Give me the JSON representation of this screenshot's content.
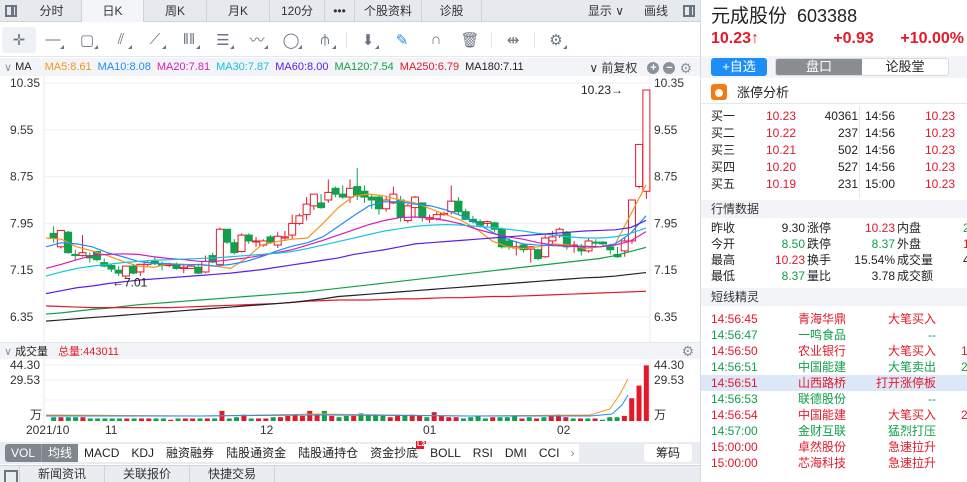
{
  "tabbar": {
    "tabs": [
      {
        "label": "分时",
        "active": false,
        "w": 60
      },
      {
        "label": "日K",
        "active": true,
        "w": 62
      },
      {
        "label": "周K",
        "active": false,
        "w": 63
      },
      {
        "label": "月K",
        "active": false,
        "w": 63
      },
      {
        "label": "120分",
        "active": false,
        "w": 55
      },
      {
        "label": "•••",
        "active": false,
        "w": 30
      },
      {
        "label": "个股资料",
        "active": false,
        "w": 67
      },
      {
        "label": "诊股",
        "active": false,
        "w": 60
      }
    ],
    "display_label": "显示 ∨",
    "draw_label": "画线"
  },
  "toolbar": {
    "tools": [
      {
        "name": "crosshair-icon",
        "glyph": "✛"
      },
      {
        "name": "line-tool-icon",
        "glyph": "—"
      },
      {
        "name": "rect-tool-icon",
        "glyph": "▢"
      },
      {
        "name": "fan-tool-icon",
        "glyph": "⫽"
      },
      {
        "name": "segment-tool-icon",
        "glyph": "⟋"
      },
      {
        "name": "cycle-lines-icon",
        "glyph": "‖‖"
      },
      {
        "name": "text-tool-icon",
        "glyph": "☰"
      },
      {
        "name": "wave-tool-icon",
        "glyph": "〰"
      },
      {
        "name": "ellipse-tool-icon",
        "glyph": "◯"
      },
      {
        "name": "fork-tool-icon",
        "glyph": "⫛"
      },
      {
        "name": "arrow-down-icon",
        "glyph": "⬇"
      },
      {
        "name": "eraser-icon",
        "glyph": "✎"
      },
      {
        "name": "magnet-icon",
        "glyph": "∩"
      },
      {
        "name": "trash-icon",
        "glyph": "🗑"
      },
      {
        "name": "split-icon",
        "glyph": "⇹"
      },
      {
        "name": "settings-icon",
        "glyph": "⚙"
      }
    ]
  },
  "ma_legend": {
    "label": "MA",
    "items": [
      {
        "text": "MA5:8.61",
        "color": "#f7931e"
      },
      {
        "text": "MA10:8.08",
        "color": "#1e8ef7"
      },
      {
        "text": "MA20:7.81",
        "color": "#d81bb6"
      },
      {
        "text": "MA30:7.87",
        "color": "#14c4e0"
      },
      {
        "text": "MA60:8.00",
        "color": "#5a20e6"
      },
      {
        "text": "MA120:7.54",
        "color": "#12a04a"
      },
      {
        "text": "MA250:6.79",
        "color": "#e3192a"
      },
      {
        "text": "MA180:7.11",
        "color": "#222222"
      }
    ],
    "adjust_label": "∨ 前复权"
  },
  "chart_data": {
    "type": "candlestick",
    "title": "元成股份 603388 日K",
    "y_ticks": [
      "10.35",
      "9.55",
      "8.75",
      "7.95",
      "7.15",
      "6.35"
    ],
    "y_range": [
      6.35,
      10.35
    ],
    "x_labels": [
      "2021/10",
      "11",
      "12",
      "01",
      "02"
    ],
    "annotations": {
      "high": "10.23→",
      "low": "←7.01"
    },
    "volume": {
      "label": "成交量",
      "total": "总量:443011",
      "y_ticks": [
        "44.30",
        "29.53",
        "万"
      ],
      "last_bars": [
        20.5,
        27.8,
        44.3
      ]
    }
  },
  "indicators": {
    "items": [
      "VOL",
      "均线",
      "MACD",
      "KDJ",
      "融资融券",
      "陆股通资金",
      "陆股通持仓",
      "资金抄底",
      "BOLL",
      "RSI",
      "DMI",
      "CCI"
    ],
    "l2_badge": "L2",
    "more": "›",
    "chips": "筹码"
  },
  "bottom_tabs": [
    "新闻资讯",
    "关联报价",
    "快捷交易"
  ],
  "stock": {
    "name": "元成股份",
    "code": "603388",
    "price": "10.23↑",
    "change": "+0.93",
    "change_pct": "+10.00%",
    "add_watch": "+自选",
    "seg_on": "盘口",
    "seg_off": "论股堂",
    "limit_analysis": "涨停分析"
  },
  "orderbook": [
    {
      "label": "买一",
      "price": "10.23",
      "vol": "40361",
      "time": "14:56",
      "tprice": "10.23"
    },
    {
      "label": "买二",
      "price": "10.22",
      "vol": "237",
      "time": "14:56",
      "tprice": "10.23"
    },
    {
      "label": "买三",
      "price": "10.21",
      "vol": "502",
      "time": "14:56",
      "tprice": "10.23"
    },
    {
      "label": "买四",
      "price": "10.20",
      "vol": "527",
      "time": "14:56",
      "tprice": "10.23"
    },
    {
      "label": "买五",
      "price": "10.19",
      "vol": "231",
      "time": "15:00",
      "tprice": "10.23"
    }
  ],
  "market_data": {
    "title": "行情数据",
    "rows": [
      {
        "l1": "昨收",
        "v1": "9.30",
        "c1": "",
        "l2": "涨停",
        "v2": "10.23",
        "c2": "red",
        "l3": "内盘",
        "v3": "2",
        "c3": "green"
      },
      {
        "l1": "今开",
        "v1": "8.50",
        "c1": "green",
        "l2": "跌停",
        "v2": "8.37",
        "c2": "green",
        "l3": "外盘",
        "v3": "1",
        "c3": "red"
      },
      {
        "l1": "最高",
        "v1": "10.23",
        "c1": "red",
        "l2": "换手",
        "v2": "15.54%",
        "c2": "",
        "l3": "成交量",
        "v3": "4",
        "c3": ""
      },
      {
        "l1": "最低",
        "v1": "8.37",
        "c1": "green",
        "l2": "量比",
        "v2": "3.78",
        "c2": "",
        "l3": "成交额",
        "v3": "",
        "c3": ""
      }
    ]
  },
  "short_line": {
    "title": "短线精灵",
    "rows": [
      {
        "time": "14:56:45",
        "name": "青海华鼎",
        "event": "大笔买入",
        "extra": "",
        "color": "red",
        "hl": false
      },
      {
        "time": "14:56:47",
        "name": "一鸣食品",
        "event": "--",
        "extra": "",
        "color": "green",
        "hl": false
      },
      {
        "time": "14:56:50",
        "name": "农业银行",
        "event": "大笔买入",
        "extra": "1",
        "color": "red",
        "hl": false
      },
      {
        "time": "14:56:51",
        "name": "中国能建",
        "event": "大笔卖出",
        "extra": "2",
        "color": "green",
        "hl": false
      },
      {
        "time": "14:56:51",
        "name": "山西路桥",
        "event": "打开涨停板",
        "extra": "",
        "color": "red",
        "hl": true
      },
      {
        "time": "14:56:53",
        "name": "联德股份",
        "event": "--",
        "extra": "",
        "color": "green",
        "hl": false
      },
      {
        "time": "14:56:54",
        "name": "中国能建",
        "event": "大笔买入",
        "extra": "2",
        "color": "red",
        "hl": false
      },
      {
        "time": "14:57:00",
        "name": "金财互联",
        "event": "猛烈打压",
        "extra": "",
        "color": "green",
        "hl": false
      },
      {
        "time": "15:00:00",
        "name": "卓然股份",
        "event": "急速拉升",
        "extra": "",
        "color": "red",
        "hl": false
      },
      {
        "time": "15:00:00",
        "name": "芯海科技",
        "event": "急速拉升",
        "extra": "",
        "color": "red",
        "hl": false
      }
    ]
  }
}
